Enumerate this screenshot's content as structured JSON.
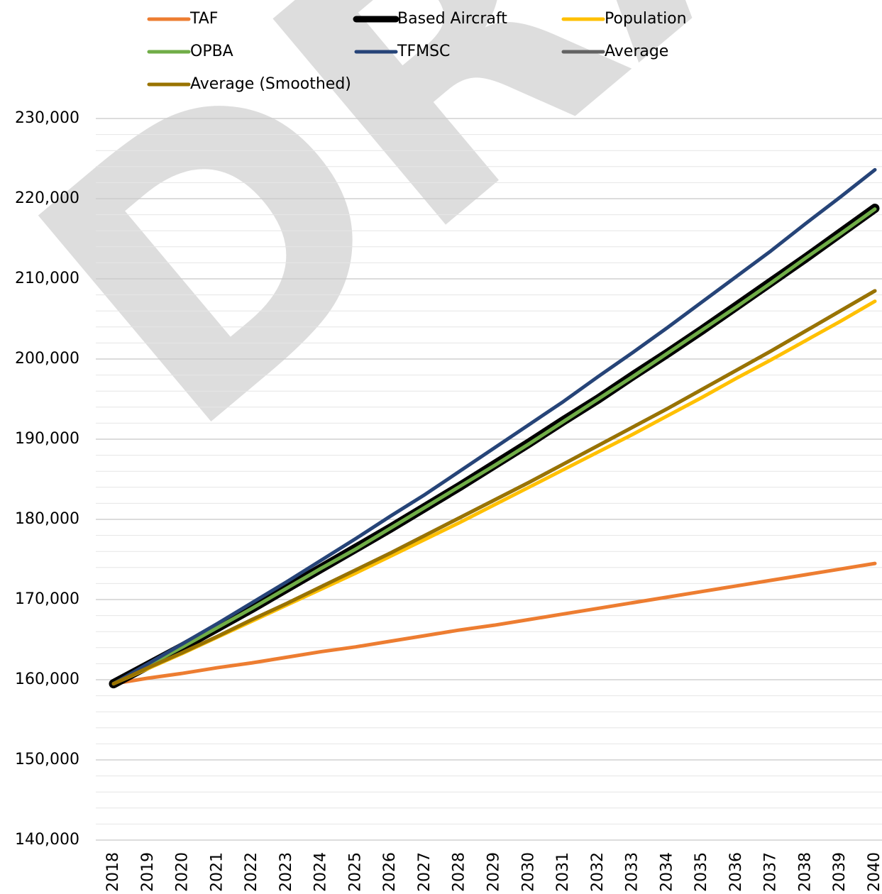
{
  "chart_data": {
    "type": "line",
    "watermark": "DRAFT",
    "categories": [
      "2018",
      "2019",
      "2020",
      "2021",
      "2022",
      "2023",
      "2024",
      "2025",
      "2026",
      "2027",
      "2028",
      "2029",
      "2030",
      "2031",
      "2032",
      "2033",
      "2034",
      "2035",
      "2036",
      "2037",
      "2038",
      "2039",
      "2040"
    ],
    "series": [
      {
        "name": "TAF",
        "color": "#ed7d31",
        "values": [
          159500,
          160200,
          160800,
          161500,
          162100,
          162800,
          163500,
          164100,
          164800,
          165500,
          166200,
          166800,
          167500,
          168200,
          168900,
          169600,
          170300,
          171000,
          171700,
          172400,
          173100,
          173800,
          174500
        ]
      },
      {
        "name": "Based Aircraft",
        "color": "#000000",
        "values": [
          159500,
          161800,
          164100,
          166500,
          168900,
          171400,
          173900,
          176400,
          178900,
          181500,
          184100,
          186800,
          189500,
          192300,
          195000,
          197900,
          200700,
          203600,
          206600,
          209600,
          212600,
          215700,
          218800
        ]
      },
      {
        "name": "Population",
        "color": "#ffc000",
        "values": [
          159500,
          161400,
          163300,
          165300,
          167300,
          169300,
          171300,
          173300,
          175400,
          177500,
          179600,
          181800,
          184000,
          186200,
          188400,
          190600,
          192900,
          195200,
          197600,
          199900,
          202300,
          204700,
          207200
        ]
      },
      {
        "name": "OPBA",
        "color": "#70ad47",
        "values": [
          159500,
          161800,
          164100,
          166500,
          168900,
          171400,
          173900,
          176300,
          178900,
          181500,
          184100,
          186700,
          189400,
          192200,
          195000,
          197800,
          200700,
          203600,
          206500,
          209500,
          212600,
          215600,
          218700
        ]
      },
      {
        "name": "TFMSC",
        "color": "#264478",
        "values": [
          159500,
          162000,
          164500,
          167000,
          169600,
          172200,
          174900,
          177600,
          180400,
          183100,
          186000,
          188900,
          191800,
          194700,
          197800,
          200800,
          203900,
          207100,
          210300,
          213500,
          216900,
          220200,
          223600
        ]
      },
      {
        "name": "Average",
        "color": "#636363",
        "values": [
          159500,
          161500,
          163400,
          165400,
          167500,
          169500,
          171600,
          173700,
          175800,
          178000,
          180200,
          182400,
          184600,
          186900,
          189200,
          191500,
          193800,
          196200,
          198600,
          201000,
          203500,
          206000,
          208500
        ]
      },
      {
        "name": "Average (Smoothed)",
        "color": "#997300",
        "values": [
          159500,
          161500,
          163400,
          165400,
          167500,
          169500,
          171600,
          173700,
          175800,
          178000,
          180200,
          182400,
          184600,
          186900,
          189200,
          191500,
          193800,
          196200,
          198600,
          201000,
          203500,
          206000,
          208500
        ]
      }
    ],
    "ylim": [
      140000,
      230000
    ],
    "yticks": [
      {
        "value": 140000,
        "label": "140,000"
      },
      {
        "value": 150000,
        "label": "150,000"
      },
      {
        "value": 160000,
        "label": "160,000"
      },
      {
        "value": 170000,
        "label": "170,000"
      },
      {
        "value": 180000,
        "label": "180,000"
      },
      {
        "value": 190000,
        "label": "190,000"
      },
      {
        "value": 200000,
        "label": "200,000"
      },
      {
        "value": 210000,
        "label": "210,000"
      },
      {
        "value": 220000,
        "label": "220,000"
      },
      {
        "value": 230000,
        "label": "230,000"
      }
    ],
    "yminorticks": [
      142000,
      144000,
      146000,
      148000,
      152000,
      154000,
      156000,
      158000,
      162000,
      164000,
      166000,
      168000,
      172000,
      174000,
      176000,
      178000,
      182000,
      184000,
      186000,
      188000,
      192000,
      194000,
      196000,
      198000,
      202000,
      204000,
      206000,
      208000,
      212000,
      214000,
      216000,
      218000,
      222000,
      224000,
      226000,
      228000
    ],
    "grid": true,
    "legend": "top"
  }
}
